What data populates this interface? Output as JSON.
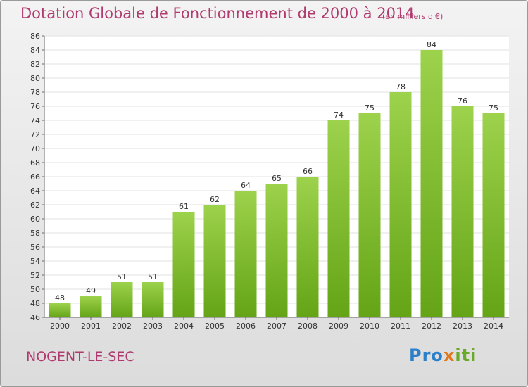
{
  "title": "Dotation Globale de Fonctionnement de 2000 à 2014",
  "subtitle": "(en milliers d'€)",
  "commune": "NOGENT-LE-SEC",
  "logo": {
    "part1": "Pro",
    "part2": "x",
    "part3": "iti"
  },
  "colors": {
    "bar_top": "#9dd24c",
    "bar_bottom": "#64a416",
    "title": "#b03a6e"
  },
  "chart_data": {
    "type": "bar",
    "categories": [
      "2000",
      "2001",
      "2002",
      "2003",
      "2004",
      "2005",
      "2006",
      "2007",
      "2008",
      "2009",
      "2010",
      "2011",
      "2012",
      "2013",
      "2014"
    ],
    "values": [
      48,
      49,
      51,
      51,
      61,
      62,
      64,
      65,
      66,
      74,
      75,
      78,
      84,
      76,
      75
    ],
    "ylim": [
      46,
      86
    ],
    "yticks": [
      46,
      48,
      50,
      52,
      54,
      56,
      58,
      60,
      62,
      64,
      66,
      68,
      70,
      72,
      74,
      76,
      78,
      80,
      82,
      84,
      86
    ],
    "grid": true,
    "xlabel": "",
    "ylabel": ""
  }
}
